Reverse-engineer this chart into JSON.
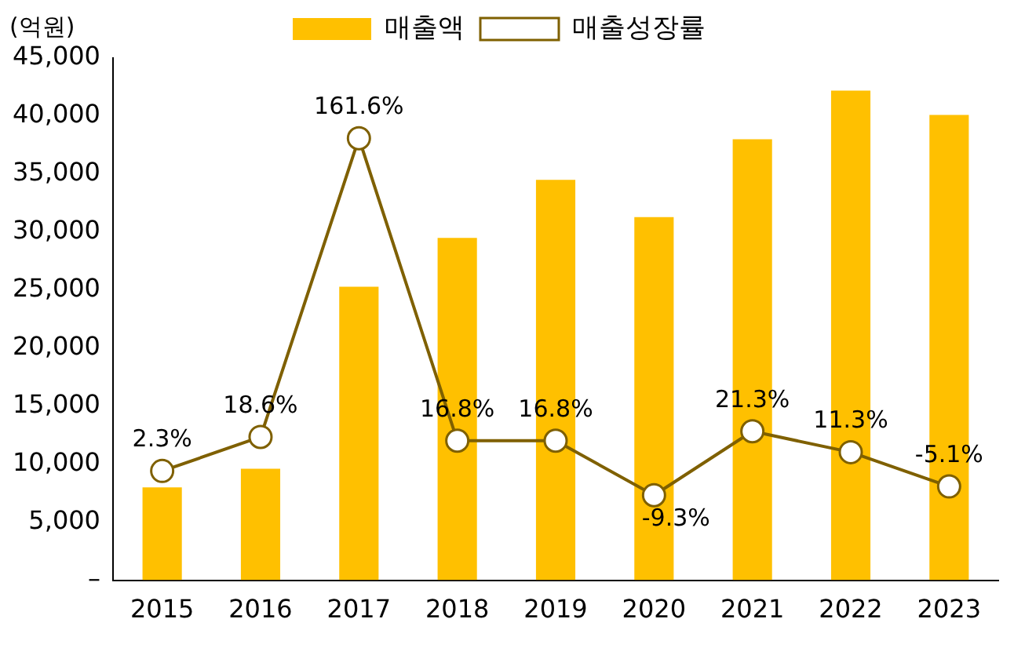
{
  "chart_data": {
    "type": "bar",
    "ylabel": "(억원)",
    "categories": [
      "2015",
      "2016",
      "2017",
      "2018",
      "2019",
      "2020",
      "2021",
      "2022",
      "2023"
    ],
    "series": [
      {
        "name": "매출액",
        "color": "#ffc000",
        "values": [
          8000,
          9600,
          25300,
          29500,
          34500,
          31300,
          38000,
          42200,
          40100
        ]
      },
      {
        "name": "매출성장률",
        "type": "line",
        "axis": "y2",
        "color": "#7f6000",
        "marker": "circle",
        "values": [
          2.3,
          18.6,
          161.6,
          16.8,
          16.8,
          -9.3,
          21.3,
          11.3,
          -5.1
        ],
        "value_labels": [
          "2.3%",
          "18.6%",
          "161.6%",
          "16.8%",
          "16.8%",
          "-9.3%",
          "21.3%",
          "11.3%",
          "-5.1%"
        ]
      }
    ],
    "ylim": [
      0,
      45000
    ],
    "yticks": [
      {
        "value": 0,
        "label": "–"
      },
      {
        "value": 5000,
        "label": "5,000"
      },
      {
        "value": 10000,
        "label": "10,000"
      },
      {
        "value": 15000,
        "label": "15,000"
      },
      {
        "value": 20000,
        "label": "20,000"
      },
      {
        "value": 25000,
        "label": "25,000"
      },
      {
        "value": 30000,
        "label": "30,000"
      },
      {
        "value": 35000,
        "label": "35,000"
      },
      {
        "value": 40000,
        "label": "40,000"
      },
      {
        "value": 45000,
        "label": "45,000"
      }
    ],
    "y2lim": [
      -50,
      200
    ],
    "legend": "top",
    "grid": false
  }
}
